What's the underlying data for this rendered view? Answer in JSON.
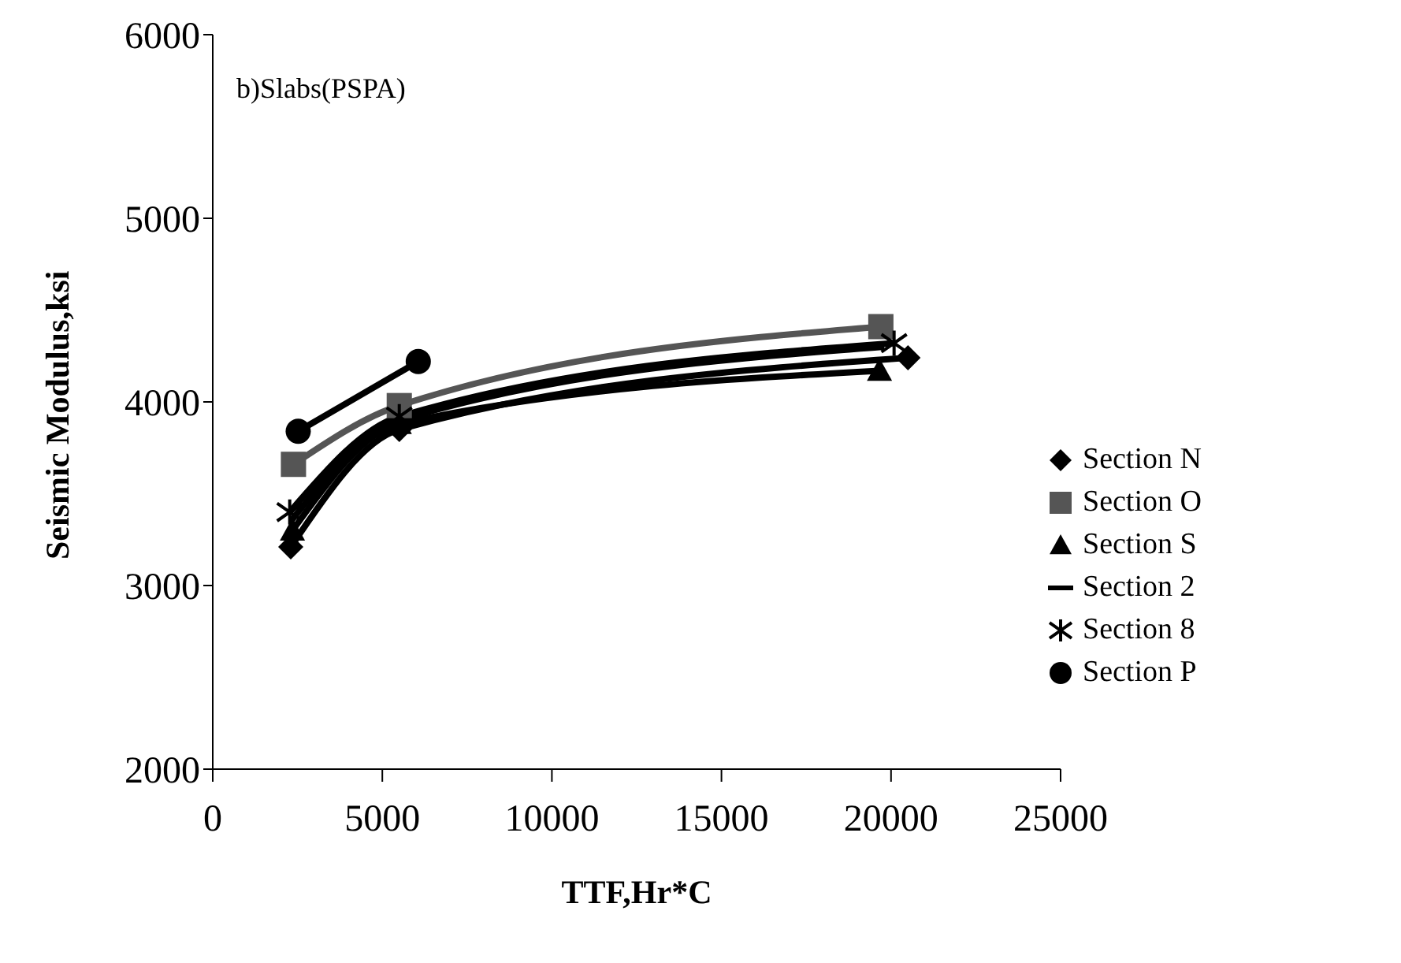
{
  "chart_data": {
    "type": "line",
    "xlabel": "TTF,Hr*C",
    "ylabel": "Seismic Modulus,ksi",
    "annotations": [
      "b)Slabs(PSPA)"
    ],
    "xlim": [
      0,
      25000
    ],
    "xticks": [
      0,
      5000,
      10000,
      15000,
      20000,
      25000
    ],
    "ylim": [
      2000,
      6000
    ],
    "yticks": [
      2000,
      3000,
      4000,
      5000,
      6000
    ],
    "grid": false,
    "legend": "right",
    "line_style": "solid",
    "series": [
      {
        "name": "Section N",
        "color": "#000000",
        "marker": "diamond",
        "x": [
          2300,
          5500,
          20500
        ],
        "values": [
          3210,
          3850,
          4240
        ]
      },
      {
        "name": "Section O",
        "color": "#555555",
        "marker": "square",
        "x": [
          2380,
          5500,
          19700
        ],
        "values": [
          3660,
          3980,
          4410
        ]
      },
      {
        "name": "Section S",
        "color": "#000000",
        "marker": "triangle",
        "x": [
          2350,
          5500,
          19660
        ],
        "values": [
          3300,
          3880,
          4170
        ]
      },
      {
        "name": "Section 2",
        "color": "#000000",
        "marker": "none",
        "x": [
          2300,
          5500,
          19800
        ],
        "values": [
          3350,
          3900,
          4300
        ]
      },
      {
        "name": "Section 8",
        "color": "#000000",
        "marker": "cross",
        "x": [
          2270,
          5500,
          20090
        ],
        "values": [
          3400,
          3920,
          4320
        ]
      },
      {
        "name": "Section P",
        "color": "#000000",
        "marker": "circle",
        "x": [
          2520,
          6060
        ],
        "values": [
          3840,
          4220
        ]
      }
    ]
  }
}
